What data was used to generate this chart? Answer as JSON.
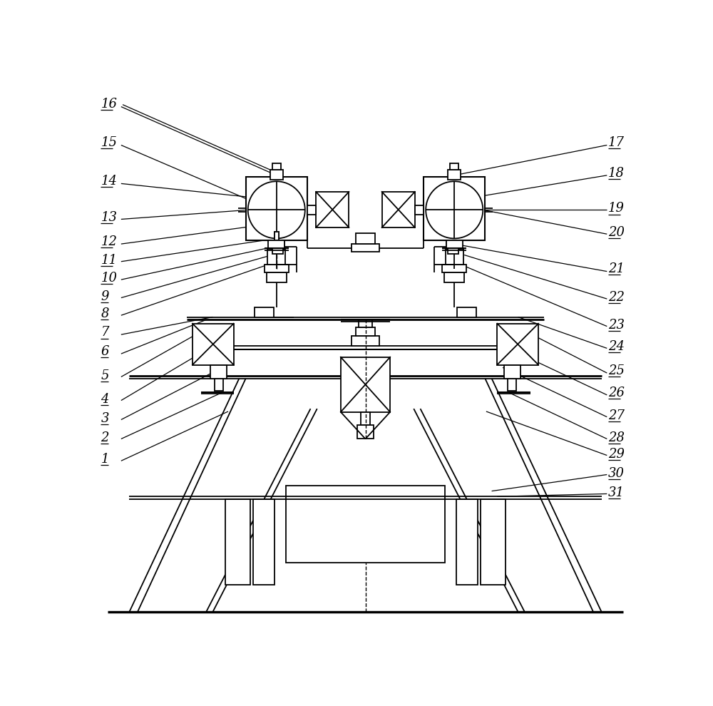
{
  "bg_color": "#ffffff",
  "line_color": "#000000",
  "fig_width": 10.0,
  "fig_height": 9.9,
  "dpi": 100
}
